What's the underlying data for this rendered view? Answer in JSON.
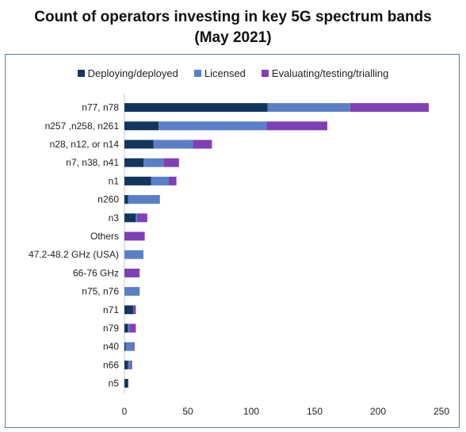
{
  "title_line1": "Count of operators investing in key 5G spectrum bands",
  "title_line2": "(May 2021)",
  "chart_data": {
    "type": "bar",
    "orientation": "horizontal",
    "stacked": true,
    "categories": [
      "n77, n78",
      "n257 ,n258, n261",
      "n28, n12, or n14",
      "n7, n38, n41",
      "n1",
      "n260",
      "n3",
      "Others",
      "47.2-48.2 GHz (USA)",
      "66-76 GHz",
      "n75, n76",
      "n71",
      "n79",
      "n40",
      "n66",
      "n5"
    ],
    "series": [
      {
        "name": "Deploying/deployed",
        "color": "#12365e",
        "values": [
          113,
          27,
          23,
          15,
          21,
          3,
          9,
          0,
          0,
          0,
          0,
          7,
          3,
          1,
          3,
          3
        ]
      },
      {
        "name": "Licensed",
        "color": "#5b7fc6",
        "values": [
          65,
          85,
          31,
          16,
          14,
          25,
          1,
          0,
          15,
          0,
          12,
          0,
          1,
          6,
          2,
          0
        ]
      },
      {
        "name": "Evaluating/testing/trialling",
        "color": "#7f3fb5",
        "values": [
          62,
          48,
          15,
          12,
          6,
          0,
          8,
          16,
          0,
          12,
          0,
          2,
          5,
          1,
          1,
          0
        ]
      }
    ],
    "xlim": [
      0,
      250
    ],
    "xticks": [
      "0",
      "50",
      "100",
      "150",
      "200",
      "250"
    ],
    "grid": false,
    "legend_position": "top"
  }
}
